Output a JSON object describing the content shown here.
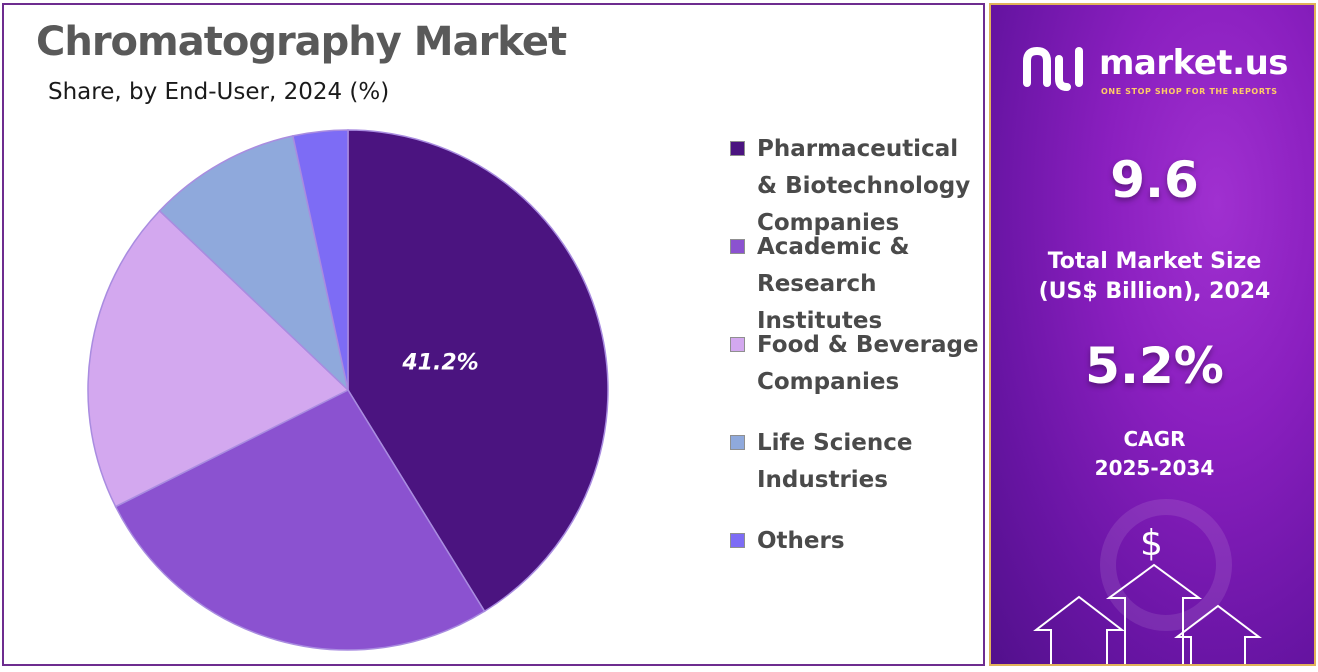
{
  "title": "Chromatography Market",
  "subtitle": "Share, by End-User, 2024 (%)",
  "chart_data": {
    "type": "pie",
    "title": "Chromatography Market",
    "subtitle": "Share, by End-User, 2024 (%)",
    "start_angle_deg": 0,
    "direction": "clockwise",
    "slices": [
      {
        "label": "Pharmaceutical & Biotechnology Companies",
        "value": 41.2,
        "color": "#4b1480",
        "data_label": "41.2%"
      },
      {
        "label": "Academic & Research Institutes",
        "value": 26.4,
        "color": "#8b52d0",
        "data_label": ""
      },
      {
        "label": "Food & Beverage Companies",
        "value": 19.5,
        "color": "#d3a8ef",
        "data_label": ""
      },
      {
        "label": "Life Science Industries",
        "value": 9.5,
        "color": "#8fa9dc",
        "data_label": ""
      },
      {
        "label": "Others",
        "value": 3.4,
        "color": "#7d6cf5",
        "data_label": ""
      }
    ],
    "legend_position": "right"
  },
  "legend": [
    {
      "label": "Pharmaceutical & Biotechnology Companies",
      "color": "#4b1480"
    },
    {
      "label": "Academic & Research Institutes",
      "color": "#8b52d0"
    },
    {
      "label": "Food & Beverage Companies",
      "color": "#d3a8ef"
    },
    {
      "label": "Life Science Industries",
      "color": "#8fa9dc"
    },
    {
      "label": "Others",
      "color": "#7d6cf5"
    }
  ],
  "side_panel": {
    "brand_name": "market.us",
    "brand_tagline": "ONE STOP SHOP FOR THE REPORTS",
    "market_size_value": "9.6",
    "market_size_label_line1": "Total Market Size",
    "market_size_label_line2": "(US$ Billion), 2024",
    "cagr_value": "5.2%",
    "cagr_label_line1": "CAGR",
    "cagr_label_line2": "2025-2034",
    "dollar_sign": "$",
    "accent_color": "#8a1fbf",
    "border_color": "#e0b25a"
  }
}
